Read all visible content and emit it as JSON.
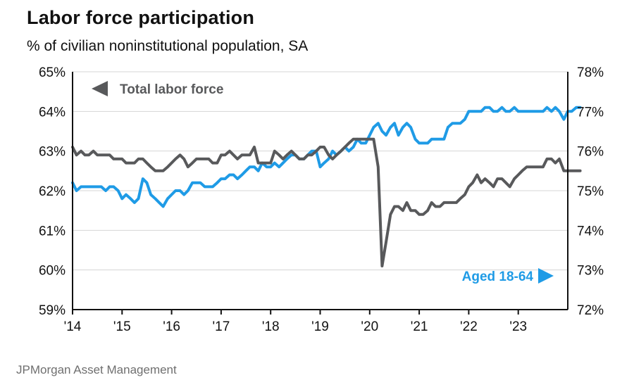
{
  "header": {
    "title": "Labor force participation",
    "subtitle": "% of civilian noninstitutional population, SA"
  },
  "footer": {
    "source": "JPMorgan Asset Management"
  },
  "colors": {
    "total": "#58595b",
    "aged": "#1f9be6",
    "grid": "#d4d4d4",
    "axis": "#111111"
  },
  "chart_data": {
    "type": "line",
    "title": "Labor force participation",
    "subtitle": "% of civilian noninstitutional population, SA",
    "x_start": 2014,
    "x_end": 2024,
    "x_ticks": [
      2014,
      2015,
      2016,
      2017,
      2018,
      2019,
      2020,
      2021,
      2022,
      2023
    ],
    "x_tick_labels": [
      "'14",
      "'15",
      "'16",
      "'17",
      "'18",
      "'19",
      "'20",
      "'21",
      "'22",
      "'23"
    ],
    "ylim_left": [
      59,
      65
    ],
    "y_ticks_left": [
      "59%",
      "60%",
      "61%",
      "62%",
      "63%",
      "64%",
      "65%"
    ],
    "ylim_right": [
      72,
      78
    ],
    "y_ticks_right": [
      "72%",
      "73%",
      "74%",
      "75%",
      "76%",
      "77%",
      "78%"
    ],
    "grid": true,
    "legend": [
      {
        "label": "Total labor force",
        "axis": "left",
        "placement": "top-left"
      },
      {
        "label": "Aged 18-64",
        "axis": "right",
        "placement": "bottom-right"
      }
    ],
    "series": [
      {
        "name": "Total labor force",
        "axis": "left",
        "points": [
          [
            2014.0,
            63.1
          ],
          [
            2014.08,
            62.9
          ],
          [
            2014.17,
            63.0
          ],
          [
            2014.25,
            62.9
          ],
          [
            2014.33,
            62.9
          ],
          [
            2014.42,
            63.0
          ],
          [
            2014.5,
            62.9
          ],
          [
            2014.58,
            62.9
          ],
          [
            2014.67,
            62.9
          ],
          [
            2014.75,
            62.9
          ],
          [
            2014.83,
            62.8
          ],
          [
            2014.92,
            62.8
          ],
          [
            2015.0,
            62.8
          ],
          [
            2015.08,
            62.7
          ],
          [
            2015.17,
            62.7
          ],
          [
            2015.25,
            62.7
          ],
          [
            2015.33,
            62.8
          ],
          [
            2015.42,
            62.8
          ],
          [
            2015.5,
            62.7
          ],
          [
            2015.58,
            62.6
          ],
          [
            2015.67,
            62.5
          ],
          [
            2015.75,
            62.5
          ],
          [
            2015.83,
            62.5
          ],
          [
            2015.92,
            62.6
          ],
          [
            2016.0,
            62.7
          ],
          [
            2016.08,
            62.8
          ],
          [
            2016.17,
            62.9
          ],
          [
            2016.25,
            62.8
          ],
          [
            2016.33,
            62.6
          ],
          [
            2016.42,
            62.7
          ],
          [
            2016.5,
            62.8
          ],
          [
            2016.58,
            62.8
          ],
          [
            2016.67,
            62.8
          ],
          [
            2016.75,
            62.8
          ],
          [
            2016.83,
            62.7
          ],
          [
            2016.92,
            62.7
          ],
          [
            2017.0,
            62.9
          ],
          [
            2017.08,
            62.9
          ],
          [
            2017.17,
            63.0
          ],
          [
            2017.25,
            62.9
          ],
          [
            2017.33,
            62.8
          ],
          [
            2017.42,
            62.9
          ],
          [
            2017.5,
            62.9
          ],
          [
            2017.58,
            62.9
          ],
          [
            2017.67,
            63.1
          ],
          [
            2017.75,
            62.7
          ],
          [
            2017.83,
            62.7
          ],
          [
            2017.92,
            62.7
          ],
          [
            2018.0,
            62.7
          ],
          [
            2018.08,
            63.0
          ],
          [
            2018.17,
            62.9
          ],
          [
            2018.25,
            62.8
          ],
          [
            2018.33,
            62.9
          ],
          [
            2018.42,
            63.0
          ],
          [
            2018.5,
            62.9
          ],
          [
            2018.58,
            62.8
          ],
          [
            2018.67,
            62.8
          ],
          [
            2018.75,
            62.9
          ],
          [
            2018.83,
            62.9
          ],
          [
            2018.92,
            63.0
          ],
          [
            2019.0,
            63.1
          ],
          [
            2019.08,
            63.1
          ],
          [
            2019.17,
            62.9
          ],
          [
            2019.25,
            62.8
          ],
          [
            2019.33,
            62.9
          ],
          [
            2019.42,
            63.0
          ],
          [
            2019.5,
            63.1
          ],
          [
            2019.58,
            63.2
          ],
          [
            2019.67,
            63.3
          ],
          [
            2019.75,
            63.3
          ],
          [
            2019.83,
            63.3
          ],
          [
            2019.92,
            63.3
          ],
          [
            2020.0,
            63.3
          ],
          [
            2020.08,
            63.3
          ],
          [
            2020.17,
            62.6
          ],
          [
            2020.25,
            60.1
          ],
          [
            2020.33,
            60.7
          ],
          [
            2020.42,
            61.4
          ],
          [
            2020.5,
            61.6
          ],
          [
            2020.58,
            61.6
          ],
          [
            2020.67,
            61.5
          ],
          [
            2020.75,
            61.7
          ],
          [
            2020.83,
            61.5
          ],
          [
            2020.92,
            61.5
          ],
          [
            2021.0,
            61.4
          ],
          [
            2021.08,
            61.4
          ],
          [
            2021.17,
            61.5
          ],
          [
            2021.25,
            61.7
          ],
          [
            2021.33,
            61.6
          ],
          [
            2021.42,
            61.6
          ],
          [
            2021.5,
            61.7
          ],
          [
            2021.58,
            61.7
          ],
          [
            2021.67,
            61.7
          ],
          [
            2021.75,
            61.7
          ],
          [
            2021.83,
            61.8
          ],
          [
            2021.92,
            61.9
          ],
          [
            2022.0,
            62.1
          ],
          [
            2022.08,
            62.2
          ],
          [
            2022.17,
            62.4
          ],
          [
            2022.25,
            62.2
          ],
          [
            2022.33,
            62.3
          ],
          [
            2022.42,
            62.2
          ],
          [
            2022.5,
            62.1
          ],
          [
            2022.58,
            62.3
          ],
          [
            2022.67,
            62.3
          ],
          [
            2022.75,
            62.2
          ],
          [
            2022.83,
            62.1
          ],
          [
            2022.92,
            62.3
          ],
          [
            2023.0,
            62.4
          ],
          [
            2023.08,
            62.5
          ],
          [
            2023.17,
            62.6
          ],
          [
            2023.25,
            62.6
          ],
          [
            2023.33,
            62.6
          ],
          [
            2023.42,
            62.6
          ],
          [
            2023.5,
            62.6
          ],
          [
            2023.58,
            62.8
          ],
          [
            2023.67,
            62.8
          ],
          [
            2023.75,
            62.7
          ],
          [
            2023.83,
            62.8
          ],
          [
            2023.92,
            62.5
          ],
          [
            2024.0,
            62.5
          ],
          [
            2024.08,
            62.5
          ],
          [
            2024.17,
            62.5
          ],
          [
            2024.25,
            62.5
          ]
        ]
      },
      {
        "name": "Aged 18-64",
        "axis": "right",
        "points": [
          [
            2014.0,
            75.2
          ],
          [
            2014.08,
            75.0
          ],
          [
            2014.17,
            75.1
          ],
          [
            2014.25,
            75.1
          ],
          [
            2014.33,
            75.1
          ],
          [
            2014.42,
            75.1
          ],
          [
            2014.5,
            75.1
          ],
          [
            2014.58,
            75.1
          ],
          [
            2014.67,
            75.0
          ],
          [
            2014.75,
            75.1
          ],
          [
            2014.83,
            75.1
          ],
          [
            2014.92,
            75.0
          ],
          [
            2015.0,
            74.8
          ],
          [
            2015.08,
            74.9
          ],
          [
            2015.17,
            74.8
          ],
          [
            2015.25,
            74.7
          ],
          [
            2015.33,
            74.8
          ],
          [
            2015.42,
            75.3
          ],
          [
            2015.5,
            75.2
          ],
          [
            2015.58,
            74.9
          ],
          [
            2015.67,
            74.8
          ],
          [
            2015.75,
            74.7
          ],
          [
            2015.83,
            74.6
          ],
          [
            2015.92,
            74.8
          ],
          [
            2016.0,
            74.9
          ],
          [
            2016.08,
            75.0
          ],
          [
            2016.17,
            75.0
          ],
          [
            2016.25,
            74.9
          ],
          [
            2016.33,
            75.0
          ],
          [
            2016.42,
            75.2
          ],
          [
            2016.5,
            75.2
          ],
          [
            2016.58,
            75.2
          ],
          [
            2016.67,
            75.1
          ],
          [
            2016.75,
            75.1
          ],
          [
            2016.83,
            75.1
          ],
          [
            2016.92,
            75.2
          ],
          [
            2017.0,
            75.3
          ],
          [
            2017.08,
            75.3
          ],
          [
            2017.17,
            75.4
          ],
          [
            2017.25,
            75.4
          ],
          [
            2017.33,
            75.3
          ],
          [
            2017.42,
            75.4
          ],
          [
            2017.5,
            75.5
          ],
          [
            2017.58,
            75.6
          ],
          [
            2017.67,
            75.6
          ],
          [
            2017.75,
            75.5
          ],
          [
            2017.83,
            75.7
          ],
          [
            2017.92,
            75.6
          ],
          [
            2018.0,
            75.6
          ],
          [
            2018.08,
            75.7
          ],
          [
            2018.17,
            75.6
          ],
          [
            2018.25,
            75.7
          ],
          [
            2018.33,
            75.8
          ],
          [
            2018.42,
            75.9
          ],
          [
            2018.5,
            75.9
          ],
          [
            2018.58,
            75.8
          ],
          [
            2018.67,
            75.8
          ],
          [
            2018.75,
            75.9
          ],
          [
            2018.83,
            76.0
          ],
          [
            2018.92,
            76.0
          ],
          [
            2019.0,
            75.6
          ],
          [
            2019.08,
            75.7
          ],
          [
            2019.17,
            75.8
          ],
          [
            2019.25,
            76.0
          ],
          [
            2019.33,
            75.9
          ],
          [
            2019.42,
            76.0
          ],
          [
            2019.5,
            76.1
          ],
          [
            2019.58,
            76.0
          ],
          [
            2019.67,
            76.1
          ],
          [
            2019.75,
            76.3
          ],
          [
            2019.83,
            76.2
          ],
          [
            2019.92,
            76.2
          ],
          [
            2020.0,
            76.4
          ],
          [
            2020.08,
            76.6
          ],
          [
            2020.17,
            76.7
          ],
          [
            2020.25,
            76.5
          ],
          [
            2020.33,
            76.4
          ],
          [
            2020.42,
            76.6
          ],
          [
            2020.5,
            76.7
          ],
          [
            2020.58,
            76.4
          ],
          [
            2020.67,
            76.6
          ],
          [
            2020.75,
            76.7
          ],
          [
            2020.83,
            76.6
          ],
          [
            2020.92,
            76.3
          ],
          [
            2021.0,
            76.2
          ],
          [
            2021.08,
            76.2
          ],
          [
            2021.17,
            76.2
          ],
          [
            2021.25,
            76.3
          ],
          [
            2021.33,
            76.3
          ],
          [
            2021.42,
            76.3
          ],
          [
            2021.5,
            76.3
          ],
          [
            2021.58,
            76.6
          ],
          [
            2021.67,
            76.7
          ],
          [
            2021.75,
            76.7
          ],
          [
            2021.83,
            76.7
          ],
          [
            2021.92,
            76.8
          ],
          [
            2022.0,
            77.0
          ],
          [
            2022.08,
            77.0
          ],
          [
            2022.17,
            77.0
          ],
          [
            2022.25,
            77.0
          ],
          [
            2022.33,
            77.1
          ],
          [
            2022.42,
            77.1
          ],
          [
            2022.5,
            77.0
          ],
          [
            2022.58,
            77.0
          ],
          [
            2022.67,
            77.1
          ],
          [
            2022.75,
            77.0
          ],
          [
            2022.83,
            77.0
          ],
          [
            2022.92,
            77.1
          ],
          [
            2023.0,
            77.0
          ],
          [
            2023.08,
            77.0
          ],
          [
            2023.17,
            77.0
          ],
          [
            2023.25,
            77.0
          ],
          [
            2023.33,
            77.0
          ],
          [
            2023.42,
            77.0
          ],
          [
            2023.5,
            77.0
          ],
          [
            2023.58,
            77.1
          ],
          [
            2023.67,
            77.0
          ],
          [
            2023.75,
            77.1
          ],
          [
            2023.83,
            77.0
          ],
          [
            2023.92,
            76.8
          ],
          [
            2024.0,
            77.0
          ],
          [
            2024.08,
            77.0
          ],
          [
            2024.17,
            77.1
          ],
          [
            2024.25,
            77.1
          ]
        ]
      }
    ]
  }
}
